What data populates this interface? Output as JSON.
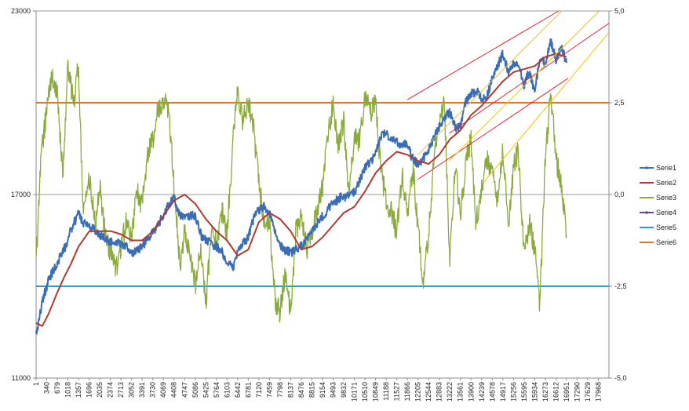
{
  "chart_data": {
    "type": "line",
    "title": "",
    "xlabel": "",
    "ylabel_left": "",
    "ylabel_right": "",
    "xlim": [
      1,
      18307
    ],
    "ylim_left": [
      11000,
      23000
    ],
    "ylim_right": [
      -5.0,
      5.0
    ],
    "left_ticks": [
      "11000",
      "17000",
      "23000"
    ],
    "right_ticks": [
      "-5,0",
      "-2,5",
      "0,0",
      "2,5",
      "5,0"
    ],
    "x_ticks": [
      "1",
      "340",
      "679",
      "1018",
      "1357",
      "1696",
      "2035",
      "2374",
      "2713",
      "3052",
      "3391",
      "3730",
      "4069",
      "4408",
      "4747",
      "5086",
      "5425",
      "5764",
      "6103",
      "6442",
      "6781",
      "7120",
      "7459",
      "7798",
      "8137",
      "8476",
      "8815",
      "9154",
      "9493",
      "9832",
      "10171",
      "10510",
      "10849",
      "11188",
      "11527",
      "11866",
      "12205",
      "12544",
      "12883",
      "13222",
      "13561",
      "13900",
      "14239",
      "14578",
      "14917",
      "15256",
      "15595",
      "15934",
      "16273",
      "16612",
      "16951",
      "17290",
      "17629",
      "17968"
    ],
    "grid": "horizontal lines at left-axis ticks only",
    "legend_position": "right",
    "legend": [
      "Serie1",
      "Serie2",
      "Serie3",
      "Serie4",
      "Serie5",
      "Serie6"
    ],
    "colors": {
      "Serie1": "#3a6db5",
      "Serie2": "#b03a2e",
      "Serie3": "#8aab3c",
      "Serie4": "#6b3fa0",
      "Serie5": "#2aa0c0",
      "Serie6": "#e8731e",
      "channel_red": "#e8202a",
      "channel_yellow": "#f5c400"
    },
    "series": [
      {
        "name": "Serie1",
        "axis": "left",
        "x": [
          1,
          200,
          400,
          679,
          900,
          1100,
          1357,
          1500,
          1800,
          2035,
          2300,
          2600,
          2900,
          3100,
          3391,
          3600,
          3900,
          4200,
          4408,
          4600,
          4800,
          5086,
          5300,
          5600,
          5900,
          6103,
          6300,
          6500,
          6781,
          7000,
          7300,
          7459,
          7700,
          7900,
          8137,
          8476,
          8815,
          9154,
          9400,
          9700,
          9832,
          10200,
          10510,
          10800,
          11000,
          11188,
          11400,
          11700,
          11866,
          12000,
          12205,
          12400,
          12600,
          12883,
          13100,
          13222,
          13400,
          13561,
          13700,
          13900,
          14100,
          14239,
          14400,
          14578,
          14750,
          14917,
          15100,
          15256,
          15400,
          15595,
          15750,
          15934,
          16100,
          16273,
          16450,
          16612,
          16800,
          16951
        ],
        "y": [
          12400,
          13500,
          14200,
          14800,
          15200,
          15800,
          16400,
          16100,
          15900,
          15700,
          15500,
          15400,
          15300,
          15100,
          15300,
          15600,
          16000,
          16600,
          16900,
          16300,
          16300,
          16300,
          15600,
          15400,
          15200,
          14800,
          14600,
          15300,
          15600,
          16400,
          16600,
          16400,
          15600,
          15200,
          15100,
          15300,
          15800,
          16300,
          16600,
          16900,
          16900,
          17100,
          17900,
          18200,
          18900,
          19000,
          18800,
          18600,
          18700,
          18200,
          18000,
          18200,
          18600,
          19200,
          19600,
          19700,
          19200,
          19200,
          20000,
          20300,
          20400,
          20100,
          20200,
          20800,
          21200,
          21600,
          21000,
          21300,
          21300,
          20600,
          21000,
          20400,
          21400,
          21300,
          22000,
          21400,
          21800,
          21300
        ]
      },
      {
        "name": "Serie2",
        "axis": "left",
        "x": [
          1,
          200,
          400,
          679,
          900,
          1100,
          1357,
          1700,
          2035,
          2400,
          2713,
          3052,
          3391,
          3730,
          4069,
          4408,
          4747,
          5086,
          5425,
          5764,
          6103,
          6442,
          6781,
          7120,
          7459,
          7798,
          8137,
          8476,
          8815,
          9154,
          9493,
          9832,
          10171,
          10510,
          10849,
          11188,
          11527,
          11866,
          12205,
          12544,
          12883,
          13222,
          13561,
          13900,
          14239,
          14578,
          14917,
          15256,
          15595,
          15934,
          16273,
          16612,
          16951
        ],
        "y": [
          12800,
          12700,
          13100,
          13800,
          14300,
          14700,
          15300,
          15800,
          15800,
          15800,
          15700,
          15500,
          15500,
          15800,
          16300,
          16800,
          17000,
          16700,
          16200,
          15800,
          15500,
          15000,
          15200,
          16100,
          16400,
          16200,
          15800,
          15200,
          15300,
          15600,
          16000,
          16400,
          16600,
          17100,
          17700,
          18100,
          18400,
          18300,
          18100,
          18000,
          18300,
          18800,
          19100,
          19600,
          19900,
          20300,
          20700,
          21000,
          21100,
          21200,
          21500,
          21600,
          21500
        ]
      },
      {
        "name": "Serie3",
        "axis": "right",
        "x": [
          1,
          150,
          300,
          500,
          679,
          850,
          1018,
          1200,
          1357,
          1500,
          1696,
          1900,
          2035,
          2200,
          2374,
          2550,
          2713,
          2900,
          3052,
          3200,
          3391,
          3550,
          3730,
          3900,
          4069,
          4250,
          4408,
          4600,
          4747,
          4900,
          5086,
          5250,
          5425,
          5600,
          5764,
          5950,
          6103,
          6300,
          6442,
          6600,
          6781,
          6950,
          7120,
          7300,
          7459,
          7650,
          7798,
          7950,
          8137,
          8300,
          8476,
          8650,
          8815,
          9000,
          9154,
          9300,
          9493,
          9650,
          9832,
          10000,
          10171,
          10350,
          10510,
          10700,
          10849,
          11000,
          11188,
          11350,
          11527,
          11700,
          11866,
          12050,
          12205,
          12380,
          12544,
          12700,
          12883,
          13050,
          13222,
          13400,
          13561,
          13750,
          13900,
          14050,
          14239,
          14400,
          14578,
          14750,
          14917,
          15100,
          15256,
          15400,
          15595,
          15780,
          15934,
          16100,
          16273,
          16450,
          16612,
          16800,
          16951
        ],
        "y": [
          -2.0,
          1.0,
          2.0,
          3.2,
          2.8,
          0.5,
          3.5,
          2.5,
          3.6,
          -0.5,
          0.5,
          -0.8,
          0.2,
          -1.0,
          -1.6,
          -2.0,
          -1.5,
          -0.6,
          -1.2,
          0.1,
          -0.3,
          1.0,
          1.5,
          2.3,
          2.6,
          2.2,
          0.3,
          -2.0,
          -1.0,
          -1.5,
          -2.5,
          -1.5,
          -3.0,
          -1.0,
          -1.3,
          -0.5,
          -1.0,
          1.5,
          2.8,
          2.0,
          2.5,
          1.8,
          0.3,
          -0.8,
          -0.8,
          -3.0,
          -3.2,
          -2.2,
          -3.2,
          -1.0,
          -0.5,
          -1.5,
          -1.0,
          -0.3,
          0.2,
          1.5,
          2.5,
          1.2,
          2.0,
          0.0,
          1.5,
          1.5,
          2.7,
          2.2,
          2.5,
          0.8,
          -0.2,
          -0.5,
          -1.0,
          0.5,
          -0.6,
          0.7,
          -1.0,
          -2.5,
          -1.0,
          0.8,
          1.8,
          2.5,
          -1.8,
          0.8,
          -0.5,
          1.0,
          1.5,
          -0.8,
          0.2,
          1.0,
          0.5,
          -0.2,
          1.2,
          -0.9,
          0.7,
          1.2,
          -1.5,
          -0.8,
          -1.5,
          -3.0,
          1.0,
          2.8,
          1.0,
          0.2,
          -1.1
        ]
      },
      {
        "name": "Serie4",
        "axis": "right",
        "x": [],
        "y": []
      },
      {
        "name": "Serie5",
        "axis": "right",
        "x": [
          1,
          18307
        ],
        "y": [
          -2.5,
          -2.5
        ]
      },
      {
        "name": "Serie6",
        "axis": "right",
        "x": [
          1,
          18307
        ],
        "y": [
          2.5,
          2.5
        ]
      }
    ],
    "trend_lines": [
      {
        "color": "channel_red",
        "axis": "left",
        "x": [
          11866,
          16700
        ],
        "y": [
          20100,
          23000
        ]
      },
      {
        "color": "channel_red",
        "axis": "left",
        "x": [
          13200,
          18307
        ],
        "y": [
          19000,
          22600
        ]
      },
      {
        "color": "channel_red",
        "axis": "left",
        "x": [
          12205,
          17000
        ],
        "y": [
          17500,
          20800
        ]
      },
      {
        "color": "channel_yellow",
        "axis": "left",
        "x": [
          12205,
          16800
        ],
        "y": [
          18300,
          23000
        ]
      },
      {
        "color": "channel_yellow",
        "axis": "left",
        "x": [
          13200,
          18000
        ],
        "y": [
          18100,
          23000
        ]
      },
      {
        "color": "channel_yellow",
        "axis": "left",
        "x": [
          14300,
          18307
        ],
        "y": [
          17400,
          22300
        ]
      }
    ]
  }
}
